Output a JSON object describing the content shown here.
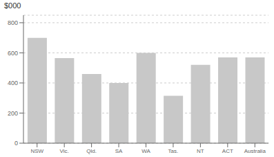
{
  "chart_data": {
    "type": "bar",
    "ylabel": "$000",
    "categories": [
      "NSW",
      "Vic.",
      "Qld.",
      "SA",
      "WA",
      "Tas.",
      "NT",
      "ACT",
      "Australia"
    ],
    "values": [
      700,
      565,
      460,
      400,
      600,
      315,
      520,
      570,
      570
    ],
    "color": "#c8c8c8",
    "ylim": [
      0,
      850
    ],
    "yticks": [
      0,
      200,
      400,
      600,
      800
    ],
    "grid": true
  }
}
